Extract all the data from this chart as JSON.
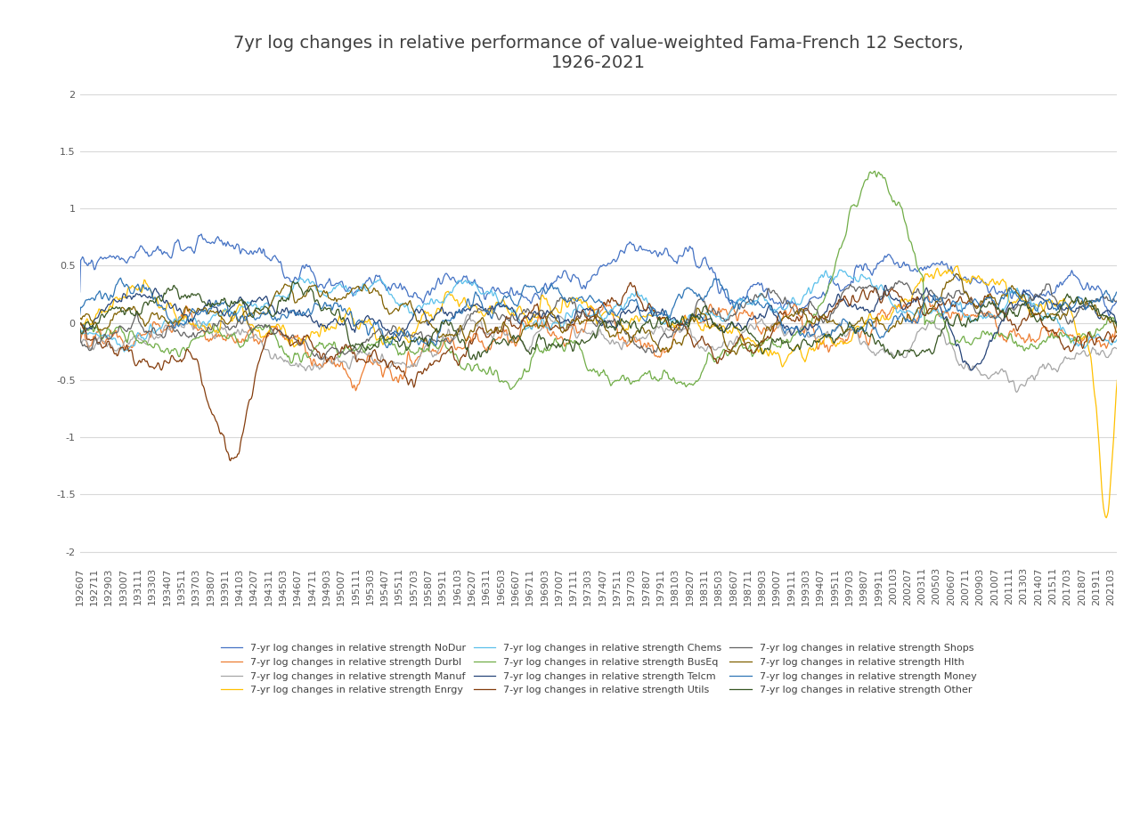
{
  "title": "7yr log changes in relative performance of value-weighted Fama-French 12 Sectors,\n1926-2021",
  "ylim": [
    -2.1,
    2.1
  ],
  "yticks": [
    -2,
    -1.5,
    -1,
    -0.5,
    0,
    0.5,
    1,
    1.5,
    2
  ],
  "sectors": [
    "NoDur",
    "Durbl",
    "Manuf",
    "Enrgy",
    "Chems",
    "BusEq",
    "Telcm",
    "Utils",
    "Shops",
    "Hlth",
    "Money",
    "Other"
  ],
  "colors": {
    "NoDur": "#4472C4",
    "Durbl": "#ED7D31",
    "Manuf": "#A5A5A5",
    "Enrgy": "#FFC000",
    "Chems": "#5BC0EB",
    "BusEq": "#70AD47",
    "Telcm": "#264478",
    "Utils": "#843C0C",
    "Shops": "#636363",
    "Hlth": "#806000",
    "Money": "#2E75B6",
    "Other": "#375623"
  },
  "legend_labels": {
    "NoDur": "7-yr log changes in relative strength NoDur",
    "Durbl": "7-yr log changes in relative strength Durbl",
    "Manuf": "7-yr log changes in relative strength Manuf",
    "Enrgy": "7-yr log changes in relative strength Enrgy",
    "Chems": "7-yr log changes in relative strength Chems",
    "BusEq": "7-yr log changes in relative strength BusEq",
    "Telcm": "7-yr log changes in relative strength Telcm",
    "Utils": "7-yr log changes in relative strength Utils",
    "Shops": "7-yr log changes in relative strength Shops",
    "Hlth": "7-yr log changes in relative strength Hlth",
    "Money": "7-yr log changes in relative strength Money",
    "Other": "7-yr log changes in relative strength Other"
  },
  "legend_order": [
    "NoDur",
    "Durbl",
    "Manuf",
    "Enrgy",
    "Chems",
    "BusEq",
    "Telcm",
    "Utils",
    "Shops",
    "Hlth",
    "Money",
    "Other"
  ],
  "background_color": "#FFFFFF",
  "grid_color": "#D9D9D9",
  "title_fontsize": 14,
  "tick_fontsize": 8,
  "legend_fontsize": 8,
  "line_width": 0.9
}
